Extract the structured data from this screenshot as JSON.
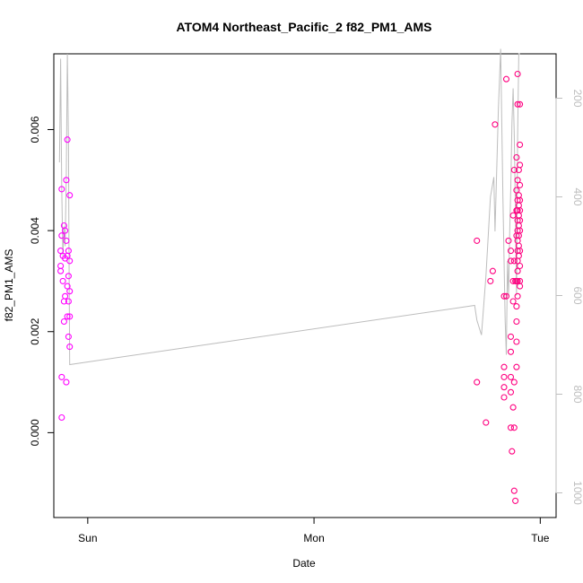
{
  "chart_data": {
    "type": "scatter",
    "title": "ATOM4 Northeast_Pacific_2 f82_PM1_AMS",
    "xlabel": "Date",
    "ylabel": "f82_PM1_AMS",
    "x_ticks": [
      "Sun",
      "Mon",
      "Tue"
    ],
    "y_ticks": [
      "0.000",
      "0.002",
      "0.004",
      "0.006"
    ],
    "y2_ticks": [
      "200",
      "400",
      "600",
      "800",
      "1000"
    ],
    "xlim_days": [
      -0.15,
      2.07
    ],
    "ylim": [
      -0.00168,
      0.0075
    ],
    "y2lim": [
      1050,
      110
    ],
    "colors": {
      "points_early": "#ff00ff",
      "points_late": "#ff0080",
      "altitude_line": "#bdbdbd"
    },
    "series": [
      {
        "points": [
          {
            "x": -0.12,
            "y": 0.0036
          },
          {
            "x": -0.12,
            "y": 0.0033
          },
          {
            "x": -0.12,
            "y": 0.0032
          },
          {
            "x": -0.115,
            "y": 0.0039
          },
          {
            "x": -0.115,
            "y": 0.00482
          },
          {
            "x": -0.115,
            "y": 0.0011
          },
          {
            "x": -0.115,
            "y": 0.0003
          },
          {
            "x": -0.11,
            "y": 0.0035
          },
          {
            "x": -0.11,
            "y": 0.003
          },
          {
            "x": -0.105,
            "y": 0.0041
          },
          {
            "x": -0.105,
            "y": 0.0026
          },
          {
            "x": -0.105,
            "y": 0.0022
          },
          {
            "x": -0.1,
            "y": 0.004
          },
          {
            "x": -0.1,
            "y": 0.00345
          },
          {
            "x": -0.1,
            "y": 0.0027
          },
          {
            "x": -0.095,
            "y": 0.0038
          },
          {
            "x": -0.095,
            "y": 0.005
          },
          {
            "x": -0.095,
            "y": 0.001
          },
          {
            "x": -0.09,
            "y": 0.0058
          },
          {
            "x": -0.09,
            "y": 0.0035
          },
          {
            "x": -0.09,
            "y": 0.0029
          },
          {
            "x": -0.09,
            "y": 0.0023
          },
          {
            "x": -0.085,
            "y": 0.0036
          },
          {
            "x": -0.085,
            "y": 0.0031
          },
          {
            "x": -0.085,
            "y": 0.0026
          },
          {
            "x": -0.085,
            "y": 0.0019
          },
          {
            "x": -0.08,
            "y": 0.0047
          },
          {
            "x": -0.08,
            "y": 0.0034
          },
          {
            "x": -0.08,
            "y": 0.0028
          },
          {
            "x": -0.08,
            "y": 0.0023
          },
          {
            "x": -0.08,
            "y": 0.0017
          },
          {
            "x": 1.72,
            "y": 0.0038
          },
          {
            "x": 1.72,
            "y": 0.001
          },
          {
            "x": 1.76,
            "y": 0.0002
          },
          {
            "x": 1.78,
            "y": 0.003
          },
          {
            "x": 1.79,
            "y": 0.0032
          },
          {
            "x": 1.8,
            "y": 0.0061
          },
          {
            "x": 1.84,
            "y": 0.0027
          },
          {
            "x": 1.84,
            "y": 0.0013
          },
          {
            "x": 1.84,
            "y": 0.0011
          },
          {
            "x": 1.84,
            "y": 0.0009
          },
          {
            "x": 1.84,
            "y": 0.0007
          },
          {
            "x": 1.85,
            "y": 0.007
          },
          {
            "x": 1.85,
            "y": 0.0027
          },
          {
            "x": 1.86,
            "y": 0.0038
          },
          {
            "x": 1.87,
            "y": 0.0036
          },
          {
            "x": 1.87,
            "y": 0.0034
          },
          {
            "x": 1.87,
            "y": 0.0019
          },
          {
            "x": 1.87,
            "y": 0.0016
          },
          {
            "x": 1.87,
            "y": 0.0011
          },
          {
            "x": 1.87,
            "y": 0.0008
          },
          {
            "x": 1.87,
            "y": 0.0001
          },
          {
            "x": 1.875,
            "y": -0.00037
          },
          {
            "x": 1.88,
            "y": 0.0043
          },
          {
            "x": 1.88,
            "y": 0.003
          },
          {
            "x": 1.88,
            "y": 0.0026
          },
          {
            "x": 1.88,
            "y": 0.0005
          },
          {
            "x": 1.885,
            "y": 0.0052
          },
          {
            "x": 1.885,
            "y": 0.0034
          },
          {
            "x": 1.885,
            "y": 0.001
          },
          {
            "x": 1.885,
            "y": 0.0001
          },
          {
            "x": 1.885,
            "y": -0.00115
          },
          {
            "x": 1.89,
            "y": 0.003
          },
          {
            "x": 1.89,
            "y": -0.00135
          },
          {
            "x": 1.895,
            "y": 0.00545
          },
          {
            "x": 1.895,
            "y": 0.0048
          },
          {
            "x": 1.895,
            "y": 0.0044
          },
          {
            "x": 1.895,
            "y": 0.0039
          },
          {
            "x": 1.895,
            "y": 0.003
          },
          {
            "x": 1.895,
            "y": 0.0025
          },
          {
            "x": 1.895,
            "y": 0.0022
          },
          {
            "x": 1.895,
            "y": 0.0018
          },
          {
            "x": 1.895,
            "y": 0.0013
          },
          {
            "x": 1.9,
            "y": 0.0071
          },
          {
            "x": 1.9,
            "y": 0.0065
          },
          {
            "x": 1.9,
            "y": 0.005
          },
          {
            "x": 1.9,
            "y": 0.0046
          },
          {
            "x": 1.9,
            "y": 0.0044
          },
          {
            "x": 1.9,
            "y": 0.0042
          },
          {
            "x": 1.9,
            "y": 0.004
          },
          {
            "x": 1.9,
            "y": 0.0038
          },
          {
            "x": 1.9,
            "y": 0.0036
          },
          {
            "x": 1.9,
            "y": 0.0034
          },
          {
            "x": 1.9,
            "y": 0.0032
          },
          {
            "x": 1.9,
            "y": 0.003
          },
          {
            "x": 1.9,
            "y": 0.0027
          },
          {
            "x": 1.905,
            "y": 0.0052
          },
          {
            "x": 1.905,
            "y": 0.0047
          },
          {
            "x": 1.905,
            "y": 0.0045
          },
          {
            "x": 1.905,
            "y": 0.0043
          },
          {
            "x": 1.905,
            "y": 0.0041
          },
          {
            "x": 1.905,
            "y": 0.0039
          },
          {
            "x": 1.905,
            "y": 0.0037
          },
          {
            "x": 1.905,
            "y": 0.0035
          },
          {
            "x": 1.91,
            "y": 0.0065
          },
          {
            "x": 1.91,
            "y": 0.0057
          },
          {
            "x": 1.91,
            "y": 0.0053
          },
          {
            "x": 1.91,
            "y": 0.0049
          },
          {
            "x": 1.91,
            "y": 0.0046
          },
          {
            "x": 1.91,
            "y": 0.0044
          },
          {
            "x": 1.91,
            "y": 0.0042
          },
          {
            "x": 1.91,
            "y": 0.004
          },
          {
            "x": 1.91,
            "y": 0.0036
          },
          {
            "x": 1.91,
            "y": 0.0033
          },
          {
            "x": 1.91,
            "y": 0.003
          },
          {
            "x": 1.91,
            "y": 0.0029
          }
        ]
      }
    ],
    "altitude_line": [
      {
        "x": -0.125,
        "y2": 330
      },
      {
        "x": -0.12,
        "y2": 120
      },
      {
        "x": -0.115,
        "y2": 380
      },
      {
        "x": -0.11,
        "y2": 520
      },
      {
        "x": -0.105,
        "y2": 460
      },
      {
        "x": -0.1,
        "y2": 500
      },
      {
        "x": -0.095,
        "y2": 360
      },
      {
        "x": -0.09,
        "y2": 110
      },
      {
        "x": -0.088,
        "y2": 180
      },
      {
        "x": -0.085,
        "y2": 300
      },
      {
        "x": -0.083,
        "y2": 500
      },
      {
        "x": -0.08,
        "y2": 740
      },
      {
        "x": 1.71,
        "y2": 620
      },
      {
        "x": 1.72,
        "y2": 650
      },
      {
        "x": 1.74,
        "y2": 680
      },
      {
        "x": 1.76,
        "y2": 560
      },
      {
        "x": 1.78,
        "y2": 400
      },
      {
        "x": 1.795,
        "y2": 360
      },
      {
        "x": 1.8,
        "y2": 470
      },
      {
        "x": 1.815,
        "y2": 220
      },
      {
        "x": 1.825,
        "y2": 100
      },
      {
        "x": 1.835,
        "y2": 400
      },
      {
        "x": 1.845,
        "y2": 650
      },
      {
        "x": 1.85,
        "y2": 720
      },
      {
        "x": 1.855,
        "y2": 530
      },
      {
        "x": 1.86,
        "y2": 600
      },
      {
        "x": 1.865,
        "y2": 470
      },
      {
        "x": 1.87,
        "y2": 380
      },
      {
        "x": 1.875,
        "y2": 250
      },
      {
        "x": 1.88,
        "y2": 180
      },
      {
        "x": 1.885,
        "y2": 270
      },
      {
        "x": 1.89,
        "y2": 420
      },
      {
        "x": 1.895,
        "y2": 600
      },
      {
        "x": 1.9,
        "y2": 280
      },
      {
        "x": 1.905,
        "y2": 110
      },
      {
        "x": 1.91,
        "y2": 110
      }
    ]
  }
}
